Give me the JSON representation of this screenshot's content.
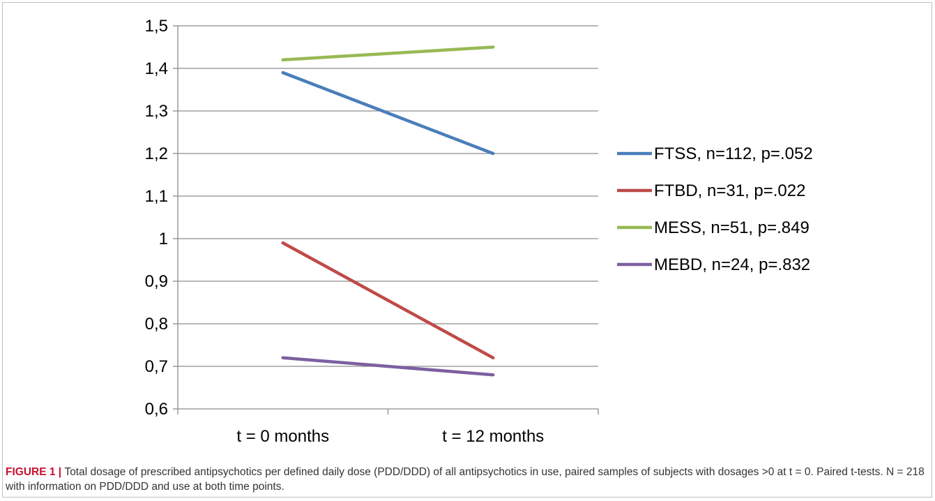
{
  "caption": {
    "label": "FIGURE 1",
    "separator": " | ",
    "text": "Total dosage of prescribed antipsychotics per defined daily dose (PDD/DDD) of all antipsychotics in use, paired samples of subjects with dosages >0 at t = 0. Paired t-tests. N = 218 with information on PDD/DDD and use at both time points."
  },
  "chart_data": {
    "type": "line",
    "title": "",
    "xlabel": "",
    "ylabel": "",
    "categories": [
      "t = 0 months",
      "t = 12 months"
    ],
    "ylim": [
      0.6,
      1.5
    ],
    "y_ticks": [
      "0,6",
      "0,7",
      "0,8",
      "0,9",
      "1",
      "1,1",
      "1,2",
      "1,3",
      "1,4",
      "1,5"
    ],
    "grid": true,
    "legend_position": "right",
    "series": [
      {
        "name": "FTSS, n=112, p=.052",
        "color": "#4a7ebb",
        "values": [
          1.39,
          1.2
        ]
      },
      {
        "name": "FTBD, n=31, p=.022",
        "color": "#be4b48",
        "values": [
          0.99,
          0.72
        ]
      },
      {
        "name": "MESS, n=51, p=.849",
        "color": "#98b954",
        "values": [
          1.42,
          1.45
        ]
      },
      {
        "name": "MEBD, n=24, p=.832",
        "color": "#7d60a0",
        "values": [
          0.72,
          0.68
        ]
      }
    ]
  }
}
